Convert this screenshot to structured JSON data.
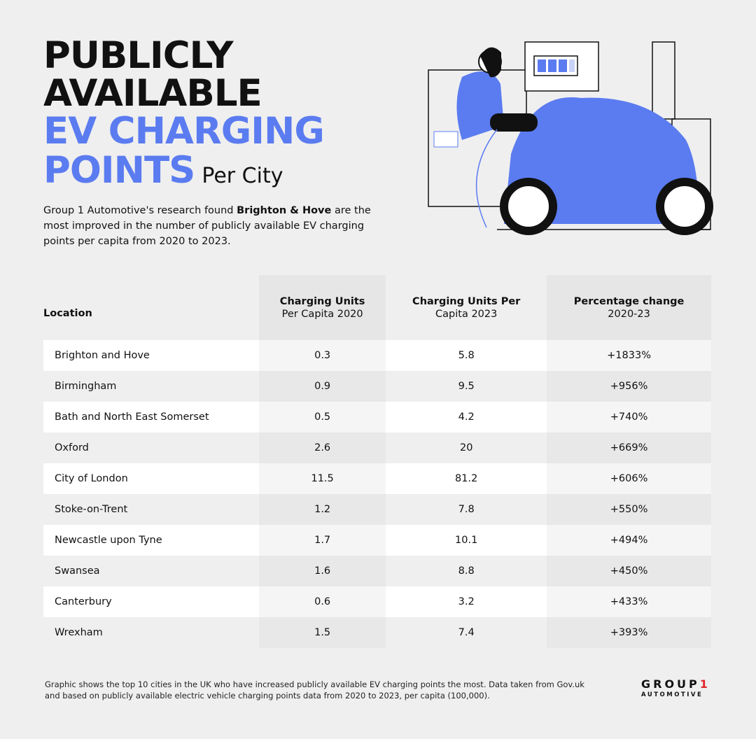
{
  "title": {
    "line1": "PUBLICLY",
    "line2": "AVAILABLE",
    "line3": "EV CHARGING",
    "line4": "POINTS",
    "suffix": "Per City"
  },
  "intro": {
    "before": "Group 1 Automotive's research found ",
    "bold": "Brighton & Hove",
    "after": " are the most improved in the number of publicly available EV charging points per capita from 2020 to 2023."
  },
  "colors": {
    "accent": "#5b7cf0",
    "logo_red": "#e0262b"
  },
  "table": {
    "headers": [
      {
        "bold": "Location",
        "rest": ""
      },
      {
        "bold": "Charging Units",
        "rest": "Per Capita 2020"
      },
      {
        "bold": "Charging Units Per",
        "rest": "Capita 2023"
      },
      {
        "bold": "Percentage change",
        "rest": "2020-23"
      }
    ],
    "rows": [
      [
        "Brighton and Hove",
        "0.3",
        "5.8",
        "+1833%"
      ],
      [
        "Birmingham",
        "0.9",
        "9.5",
        "+956%"
      ],
      [
        "Bath and North East Somerset",
        "0.5",
        "4.2",
        "+740%"
      ],
      [
        "Oxford",
        "2.6",
        "20",
        "+669%"
      ],
      [
        "City of London",
        "11.5",
        "81.2",
        "+606%"
      ],
      [
        "Stoke-on-Trent",
        "1.2",
        "7.8",
        "+550%"
      ],
      [
        "Newcastle upon Tyne",
        "1.7",
        "10.1",
        "+494%"
      ],
      [
        "Swansea",
        "1.6",
        "8.8",
        "+450%"
      ],
      [
        "Canterbury",
        "0.6",
        "3.2",
        "+433%"
      ],
      [
        "Wrexham",
        "1.5",
        "7.4",
        "+393%"
      ]
    ]
  },
  "footer": "Graphic shows the top 10 cities in the UK who have increased publicly available EV charging points the most. Data taken from Gov.uk and based on publicly available electric vehicle charging points data from 2020 to 2023, per capita (100,000).",
  "logo": {
    "word": "GROUP",
    "number": "1",
    "sub": "AUTOMOTIVE"
  }
}
